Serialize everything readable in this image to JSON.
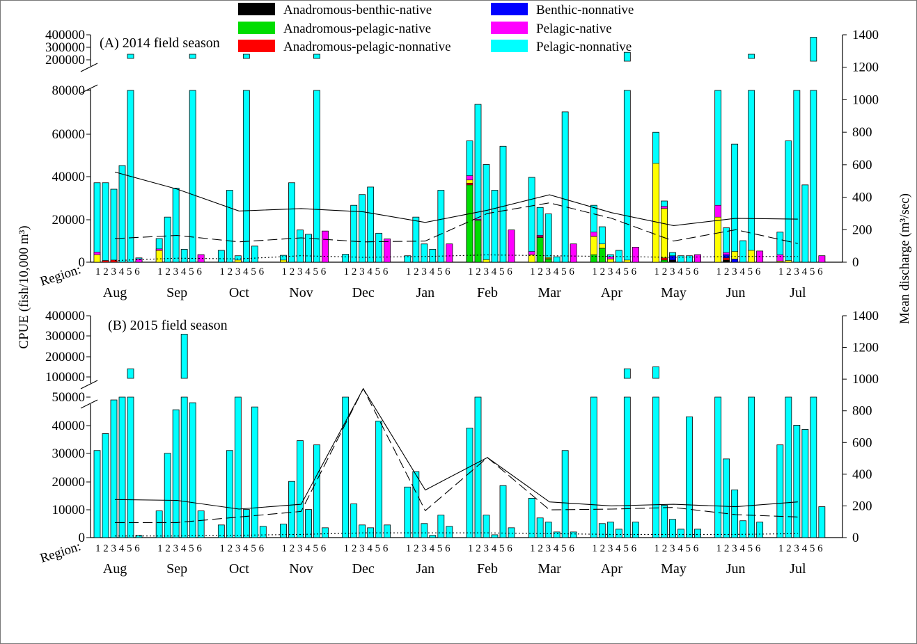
{
  "legend": [
    {
      "label": "Anadromous-benthic-native",
      "color": "#000000"
    },
    {
      "label": "Anadromous-pelagic-native",
      "color": "#00dd00"
    },
    {
      "label": "Anadromous-pelagic-nonnative",
      "color": "#ff0000"
    },
    {
      "label": "Benthic-nonnative",
      "color": "#0000ff"
    },
    {
      "label": "Pelagic-native",
      "color": "#ff00ff"
    },
    {
      "label": "Pelagic-nonnative",
      "color": "#00ffff"
    }
  ],
  "y_left_label": "CPUE (fish/10,000 m³)",
  "y_right_label": "Mean discharge (m³/sec)",
  "region_label": "Region:",
  "region_ticks": "1 2 3 4 5 6",
  "chart_data": [
    {
      "type": "bar",
      "title": "(A) 2014 field season",
      "months": [
        "Aug",
        "Sep",
        "Oct",
        "Nov",
        "Dec",
        "Jan",
        "Feb",
        "Mar",
        "Apr",
        "May",
        "Jun",
        "Jul"
      ],
      "regions": [
        1,
        2,
        3,
        4,
        5,
        6
      ],
      "y_ticks_lower": [
        0,
        20000,
        40000,
        60000,
        80000
      ],
      "y_ticks_upper": [
        200000,
        300000,
        400000
      ],
      "y_right_ticks": [
        0,
        200,
        400,
        600,
        800,
        1000,
        1200,
        1400
      ],
      "ylim_lower": [
        0,
        80000
      ],
      "ylim_right": [
        0,
        1400
      ],
      "totals": [
        [
          37000,
          37000,
          34000,
          45000,
          200000,
          2000
        ],
        [
          11000,
          21000,
          34500,
          6000,
          200000,
          3500
        ],
        [
          5500,
          33500,
          3000,
          200000,
          7500,
          0
        ],
        [
          3200,
          37000,
          15000,
          13000,
          210000,
          14500
        ],
        [
          3700,
          26500,
          31500,
          35000,
          13500,
          10800
        ],
        [
          3000,
          21000,
          8500,
          6000,
          33500,
          8500
        ],
        [
          56500,
          73500,
          45500,
          33500,
          54000,
          15000
        ],
        [
          39500,
          25500,
          22500,
          2500,
          70000,
          8500
        ],
        [
          26500,
          16500,
          3500,
          5500,
          260000,
          7000
        ],
        [
          60500,
          28500,
          4500,
          3000,
          3000,
          3500
        ],
        [
          80000,
          16000,
          55000,
          10000,
          210000,
          5200
        ],
        [
          14000,
          56500,
          80000,
          36000,
          380000,
          3000
        ]
      ],
      "native_parts": [
        [
          [
            0,
            0,
            0,
            0,
            3500,
            1200
          ],
          [
            0,
            0,
            800,
            0,
            0,
            0
          ],
          [
            0,
            0,
            1000,
            0,
            0,
            0
          ],
          [
            0,
            0,
            0,
            0,
            0,
            0
          ],
          [
            0,
            0,
            0,
            0,
            0,
            0
          ],
          [
            0,
            0,
            0,
            0,
            0,
            1500
          ]
        ],
        [
          [
            0,
            0,
            0,
            0,
            5500,
            700
          ],
          [
            0,
            0,
            0,
            0,
            0,
            0
          ],
          [
            0,
            0,
            0,
            0,
            0,
            0
          ],
          [
            0,
            0,
            0,
            0,
            0,
            0
          ],
          [
            0,
            0,
            0,
            0,
            0,
            0
          ],
          [
            0,
            0,
            0,
            0,
            0,
            3500
          ]
        ],
        [
          [
            0,
            0,
            0,
            0,
            0,
            0
          ],
          [
            0,
            0,
            0,
            0,
            0,
            0
          ],
          [
            0,
            0,
            0,
            0,
            1000,
            0
          ],
          [
            0,
            0,
            0,
            0,
            0,
            0
          ],
          [
            0,
            0,
            0,
            0,
            0,
            0
          ],
          [
            0,
            0,
            0,
            0,
            0,
            0
          ]
        ],
        [
          [
            0,
            0,
            0,
            0,
            1000,
            0
          ],
          [
            0,
            0,
            0,
            0,
            0,
            0
          ],
          [
            0,
            0,
            0,
            0,
            0,
            0
          ],
          [
            0,
            0,
            0,
            0,
            0,
            0
          ],
          [
            0,
            0,
            0,
            0,
            0,
            0
          ],
          [
            0,
            0,
            0,
            0,
            0,
            14500
          ]
        ],
        [
          [
            0,
            0,
            0,
            0,
            0,
            0
          ],
          [
            0,
            0,
            0,
            0,
            0,
            0
          ],
          [
            0,
            0,
            0,
            0,
            0,
            0
          ],
          [
            0,
            0,
            0,
            0,
            0,
            0
          ],
          [
            0,
            0,
            0,
            0,
            0,
            0
          ],
          [
            0,
            0,
            0,
            0,
            0,
            10800
          ]
        ],
        [
          [
            0,
            0,
            0,
            0,
            0,
            0
          ],
          [
            0,
            0,
            0,
            0,
            0,
            0
          ],
          [
            0,
            0,
            0,
            0,
            0,
            0
          ],
          [
            0,
            0,
            0,
            0,
            0,
            0
          ],
          [
            0,
            0,
            0,
            0,
            0,
            0
          ],
          [
            0,
            0,
            0,
            0,
            0,
            8500
          ]
        ],
        [
          [
            0,
            36000,
            800,
            0,
            1500,
            2000
          ],
          [
            0,
            19500,
            0,
            0,
            0,
            500
          ],
          [
            0,
            0,
            0,
            0,
            1200,
            0
          ],
          [
            0,
            0,
            0,
            0,
            0,
            0
          ],
          [
            0,
            0,
            0,
            0,
            0,
            0
          ],
          [
            0,
            0,
            0,
            0,
            0,
            15000
          ]
        ],
        [
          [
            0,
            0,
            0,
            0,
            3500,
            1500
          ],
          [
            0,
            11500,
            500,
            0,
            0,
            500
          ],
          [
            0,
            1500,
            200,
            0,
            500,
            0
          ],
          [
            0,
            0,
            0,
            0,
            0,
            0
          ],
          [
            0,
            0,
            0,
            0,
            0,
            0
          ],
          [
            0,
            0,
            0,
            0,
            0,
            8500
          ]
        ],
        [
          [
            0,
            3500,
            0,
            0,
            8500,
            2000
          ],
          [
            0,
            6500,
            0,
            0,
            2000,
            0
          ],
          [
            0,
            0,
            0,
            0,
            1500,
            1000
          ],
          [
            0,
            0,
            0,
            0,
            0,
            0
          ],
          [
            0,
            0,
            0,
            0,
            1000,
            0
          ],
          [
            0,
            0,
            0,
            0,
            0,
            7000
          ]
        ],
        [
          [
            0,
            0,
            0,
            0,
            46000,
            0
          ],
          [
            0,
            1000,
            1000,
            0,
            23000,
            1000
          ],
          [
            1000,
            0,
            0,
            2000,
            0,
            0
          ],
          [
            0,
            0,
            0,
            0,
            0,
            0
          ],
          [
            0,
            0,
            0,
            0,
            0,
            0
          ],
          [
            0,
            0,
            0,
            0,
            0,
            3500
          ]
        ],
        [
          [
            0,
            0,
            0,
            0,
            21000,
            5500
          ],
          [
            1000,
            0,
            1000,
            1500,
            0,
            1000
          ],
          [
            0,
            0,
            0,
            1500,
            3500,
            0
          ],
          [
            0,
            0,
            0,
            0,
            0,
            0
          ],
          [
            0,
            0,
            0,
            0,
            5500,
            0
          ],
          [
            0,
            0,
            0,
            0,
            0,
            5200
          ]
        ],
        [
          [
            0,
            0,
            0,
            0,
            500,
            3000
          ],
          [
            0,
            0,
            0,
            0,
            800,
            0
          ],
          [
            0,
            0,
            0,
            0,
            0,
            0
          ],
          [
            0,
            0,
            0,
            0,
            0,
            0
          ],
          [
            0,
            0,
            0,
            0,
            0,
            0
          ],
          [
            0,
            0,
            0,
            0,
            0,
            3000
          ]
        ]
      ],
      "discharge_solid": [
        555,
        450,
        315,
        330,
        310,
        245,
        320,
        415,
        305,
        225,
        270,
        265
      ],
      "discharge_dashed": [
        145,
        165,
        125,
        150,
        125,
        130,
        300,
        365,
        270,
        130,
        200,
        115
      ],
      "discharge_dotted": [
        10,
        25,
        20,
        40,
        30,
        35,
        45,
        40,
        35,
        30,
        35,
        35
      ]
    },
    {
      "type": "bar",
      "title": "(B) 2015 field season",
      "months": [
        "Aug",
        "Sep",
        "Oct",
        "Nov",
        "Dec",
        "Jan",
        "Feb",
        "Mar",
        "Apr",
        "May",
        "Jun",
        "Jul"
      ],
      "regions": [
        1,
        2,
        3,
        4,
        5,
        6
      ],
      "y_ticks_lower": [
        0,
        10000,
        20000,
        30000,
        40000,
        50000
      ],
      "y_ticks_upper": [
        100000,
        200000,
        300000,
        400000
      ],
      "y_right_ticks": [
        0,
        200,
        400,
        600,
        800,
        1000,
        1200,
        1400
      ],
      "ylim_lower": [
        0,
        50000
      ],
      "ylim_right": [
        0,
        1400
      ],
      "totals": [
        [
          31000,
          37000,
          49000,
          50000,
          140000,
          800
        ],
        [
          9500,
          30000,
          45500,
          310000,
          48000,
          9500
        ],
        [
          4500,
          31000,
          50000,
          10000,
          46500,
          4000
        ],
        [
          4800,
          20000,
          34500,
          10000,
          33000,
          3500
        ],
        [
          50000,
          12000,
          4500,
          3500,
          41500,
          4500
        ],
        [
          18000,
          23500,
          5000,
          800,
          8000,
          4000
        ],
        [
          39000,
          50000,
          8000,
          1000,
          18500,
          3500
        ],
        [
          14000,
          7000,
          5500,
          2000,
          31000,
          2000
        ],
        [
          50000,
          5000,
          5500,
          3000,
          140000,
          5500
        ],
        [
          150000,
          11500,
          6500,
          3000,
          43000,
          3000
        ],
        [
          50000,
          28000,
          17000,
          6000,
          50000,
          5500
        ],
        [
          33000,
          50000,
          40000,
          38500,
          50000,
          11000
        ]
      ],
      "discharge_solid": [
        240,
        235,
        180,
        210,
        940,
        300,
        505,
        225,
        200,
        210,
        195,
        225
      ],
      "discharge_dashed": [
        95,
        95,
        130,
        165,
        940,
        170,
        505,
        175,
        180,
        190,
        145,
        130
      ],
      "discharge_dotted": [
        10,
        10,
        15,
        20,
        30,
        30,
        30,
        25,
        20,
        20,
        20,
        25
      ]
    }
  ]
}
